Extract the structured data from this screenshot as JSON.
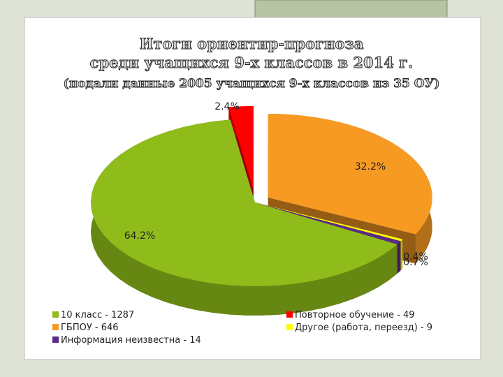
{
  "chart_data": {
    "type": "pie",
    "title": [
      "Итоги ориентир-прогноза",
      "среди учащихся 9-х классов в 2014 г.",
      "(подали данные 2005 учащихся 9-х классов из 35 ОУ)"
    ],
    "categories": [
      "ГБПОУ - 646",
      "Другое (работа, переезд) - 9",
      "Информация неизвестна - 14",
      "10 класс - 1287",
      "Повторное обучение - 49"
    ],
    "values": [
      32.2,
      0.4,
      0.7,
      64.2,
      2.4
    ],
    "value_labels": [
      "32.2%",
      "0.4%",
      "0.7%",
      "64.2%",
      "2.4%"
    ],
    "colors": [
      "#f79a23",
      "#ffff00",
      "#5b2a86",
      "#8fbc1a",
      "#ff0000"
    ]
  }
}
